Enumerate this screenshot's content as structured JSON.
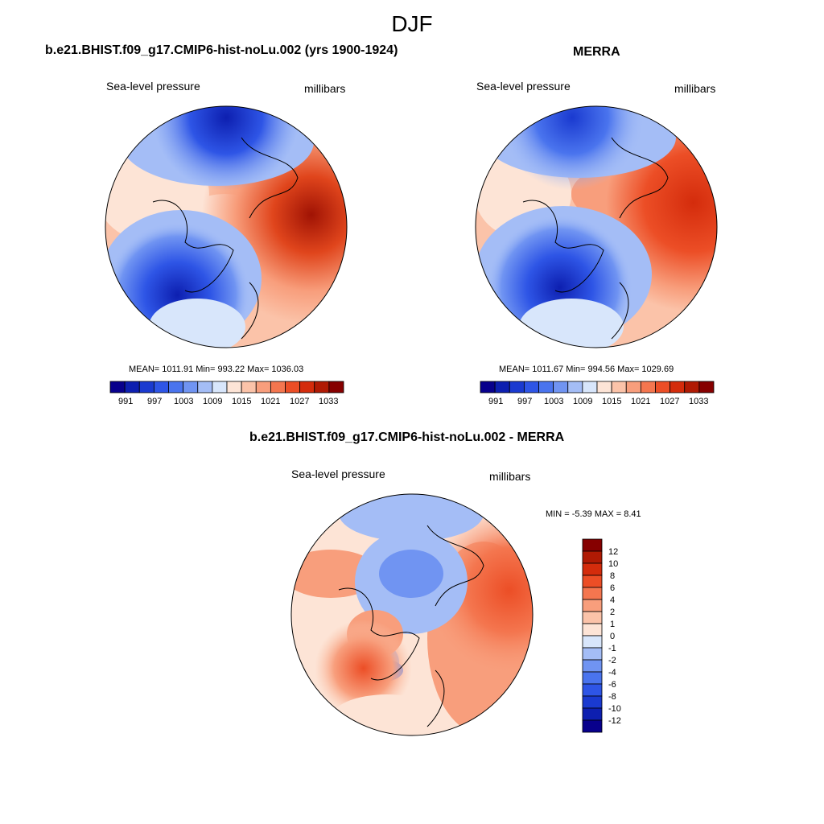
{
  "figure": {
    "title": "DJF"
  },
  "panels": [
    {
      "title": "b.e21.BHIST.f09_g17.CMIP6-hist-noLu.002 (yrs 1900-1924)",
      "left_label": "Sea-level pressure",
      "right_label": "millibars",
      "stats": "MEAN= 1011.91  Min= 993.22  Max= 1036.03"
    },
    {
      "title": "MERRA",
      "left_label": "Sea-level pressure",
      "right_label": "millibars",
      "stats": "MEAN= 1011.67  Min= 994.56  Max= 1029.69"
    },
    {
      "title": "b.e21.BHIST.f09_g17.CMIP6-hist-noLu.002 - MERRA",
      "left_label": "Sea-level pressure",
      "right_label": "millibars",
      "stats": "MIN =  -5.39 MAX =   8.41"
    }
  ],
  "colorbar_abs": {
    "colors": [
      "#08008c",
      "#0d1fb0",
      "#1a3ad0",
      "#2e55e6",
      "#4a74ee",
      "#7094f2",
      "#a4bdf6",
      "#d8e6fb",
      "#fde4d6",
      "#fbc3a9",
      "#f89e7c",
      "#f4764f",
      "#ec4e26",
      "#d42c0c",
      "#b01a04",
      "#860000"
    ],
    "labels": [
      "991",
      "997",
      "1003",
      "1009",
      "1015",
      "1021",
      "1027",
      "1033"
    ]
  },
  "colorbar_diff": {
    "colors": [
      "#860000",
      "#b01a04",
      "#d42c0c",
      "#ec4e26",
      "#f4764f",
      "#f89e7c",
      "#fbc3a9",
      "#fde4d6",
      "#d8e6fb",
      "#a4bdf6",
      "#7094f2",
      "#4a74ee",
      "#2e55e6",
      "#1a3ad0",
      "#0d1fb0",
      "#08008c"
    ],
    "labels": [
      "12",
      "10",
      "8",
      "6",
      "4",
      "2",
      "1",
      "0",
      "-1",
      "-2",
      "-4",
      "-6",
      "-8",
      "-10",
      "-12"
    ]
  }
}
